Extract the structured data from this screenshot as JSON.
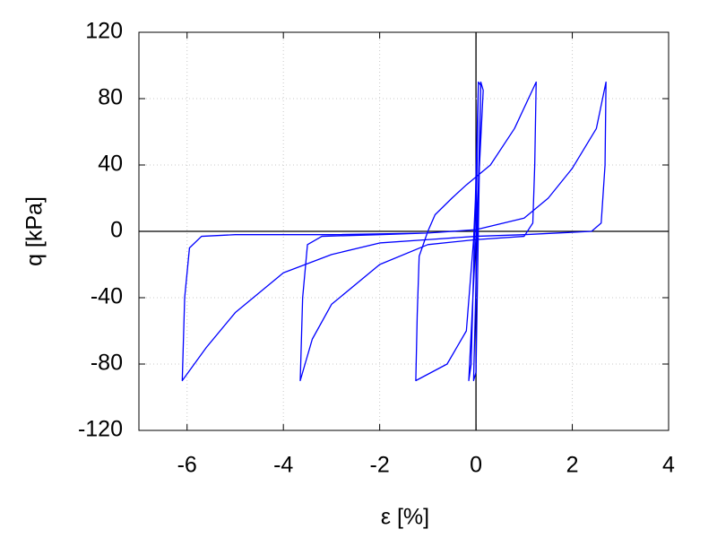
{
  "chart_data": {
    "type": "line",
    "x_label": "ε [%]",
    "y_label": "q [kPa]",
    "xlim": [
      -7,
      4
    ],
    "ylim": [
      -120,
      120
    ],
    "xticks": [
      -6,
      -4,
      -2,
      0,
      2,
      4
    ],
    "yticks": [
      -120,
      -80,
      -40,
      0,
      40,
      80,
      120
    ],
    "grid": true,
    "x": [
      0,
      0.05,
      0.1,
      -0.05,
      0,
      0.1,
      0.15,
      -0.15,
      -0.1,
      0.05,
      0.02,
      -0.05,
      -0.2,
      -0.6,
      -1.25,
      -1.22,
      -1.18,
      -1.0,
      -0.85,
      -0.5,
      -0.2,
      0.3,
      0.8,
      1.25,
      1.22,
      1.18,
      1.0,
      0,
      -1,
      -2,
      -3,
      -3.4,
      -3.65,
      -3.6,
      -3.5,
      -3.2,
      -2,
      -1,
      0,
      1,
      1.5,
      2,
      2.5,
      2.7,
      2.68,
      2.6,
      2.4,
      1,
      0,
      -1,
      -2,
      -3,
      -4,
      -5,
      -5.6,
      -6.1,
      -6.05,
      -5.95,
      -5.7,
      -5,
      -3,
      -1
    ],
    "series": [
      {
        "color": "#0000ff",
        "values": [
          0,
          90,
          88,
          -90,
          -85,
          90,
          85,
          -90,
          -80,
          90,
          40,
          -5,
          -60,
          -80,
          -90,
          -50,
          -15,
          0,
          10,
          20,
          28,
          40,
          62,
          90,
          40,
          5,
          -3,
          -5,
          -8,
          -20,
          -44,
          -65,
          -90,
          -40,
          -8,
          -3,
          -2,
          -1,
          1,
          8,
          20,
          38,
          62,
          90,
          40,
          5,
          0,
          -2,
          -3,
          -5,
          -7,
          -14,
          -25,
          -49,
          -70,
          -90,
          -40,
          -10,
          -3,
          -2,
          -2,
          -1
        ]
      }
    ]
  }
}
